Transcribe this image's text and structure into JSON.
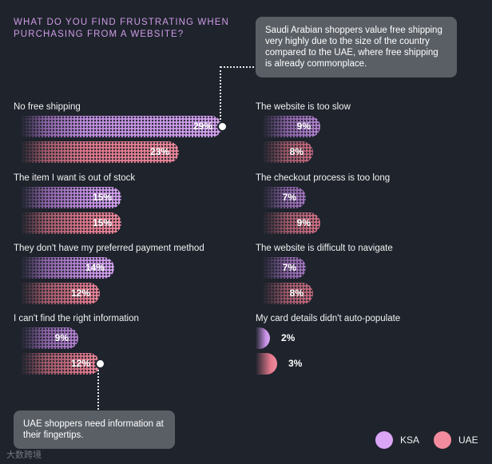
{
  "title": "WHAT DO YOU FIND FRUSTRATING WHEN PURCHASING FROM A WEBSITE?",
  "callouts": {
    "ksa": "Saudi Arabian shoppers value free shipping very highly due to the size of the country compared to the UAE, where free shipping is already commonplace.",
    "uae": "UAE shoppers need information at their fingertips."
  },
  "legend": {
    "ksa": "KSA",
    "uae": "UAE"
  },
  "watermark": "大数跨境",
  "colors": {
    "ksa": "#dba6f5",
    "uae": "#f28b9e",
    "background": "#1e232c",
    "title": "#cf9be6",
    "callout": "#5a5f66"
  },
  "chart_data": {
    "type": "bar",
    "orientation": "horizontal",
    "title": "WHAT DO YOU FIND FRUSTRATING WHEN PURCHASING FROM A WEBSITE?",
    "categories": [
      "No free shipping",
      "The item I want is out of stock",
      "They don't have my preferred payment method",
      "I can't find the right information",
      "The website is too slow",
      "The checkout process is too long",
      "The website is difficult to navigate",
      "My card details didn't auto-populate"
    ],
    "series": [
      {
        "name": "KSA",
        "values": [
          29,
          15,
          14,
          9,
          9,
          7,
          7,
          2
        ]
      },
      {
        "name": "UAE",
        "values": [
          23,
          15,
          12,
          12,
          8,
          9,
          8,
          3
        ]
      }
    ],
    "unit": "%",
    "legend_position": "bottom-right"
  }
}
